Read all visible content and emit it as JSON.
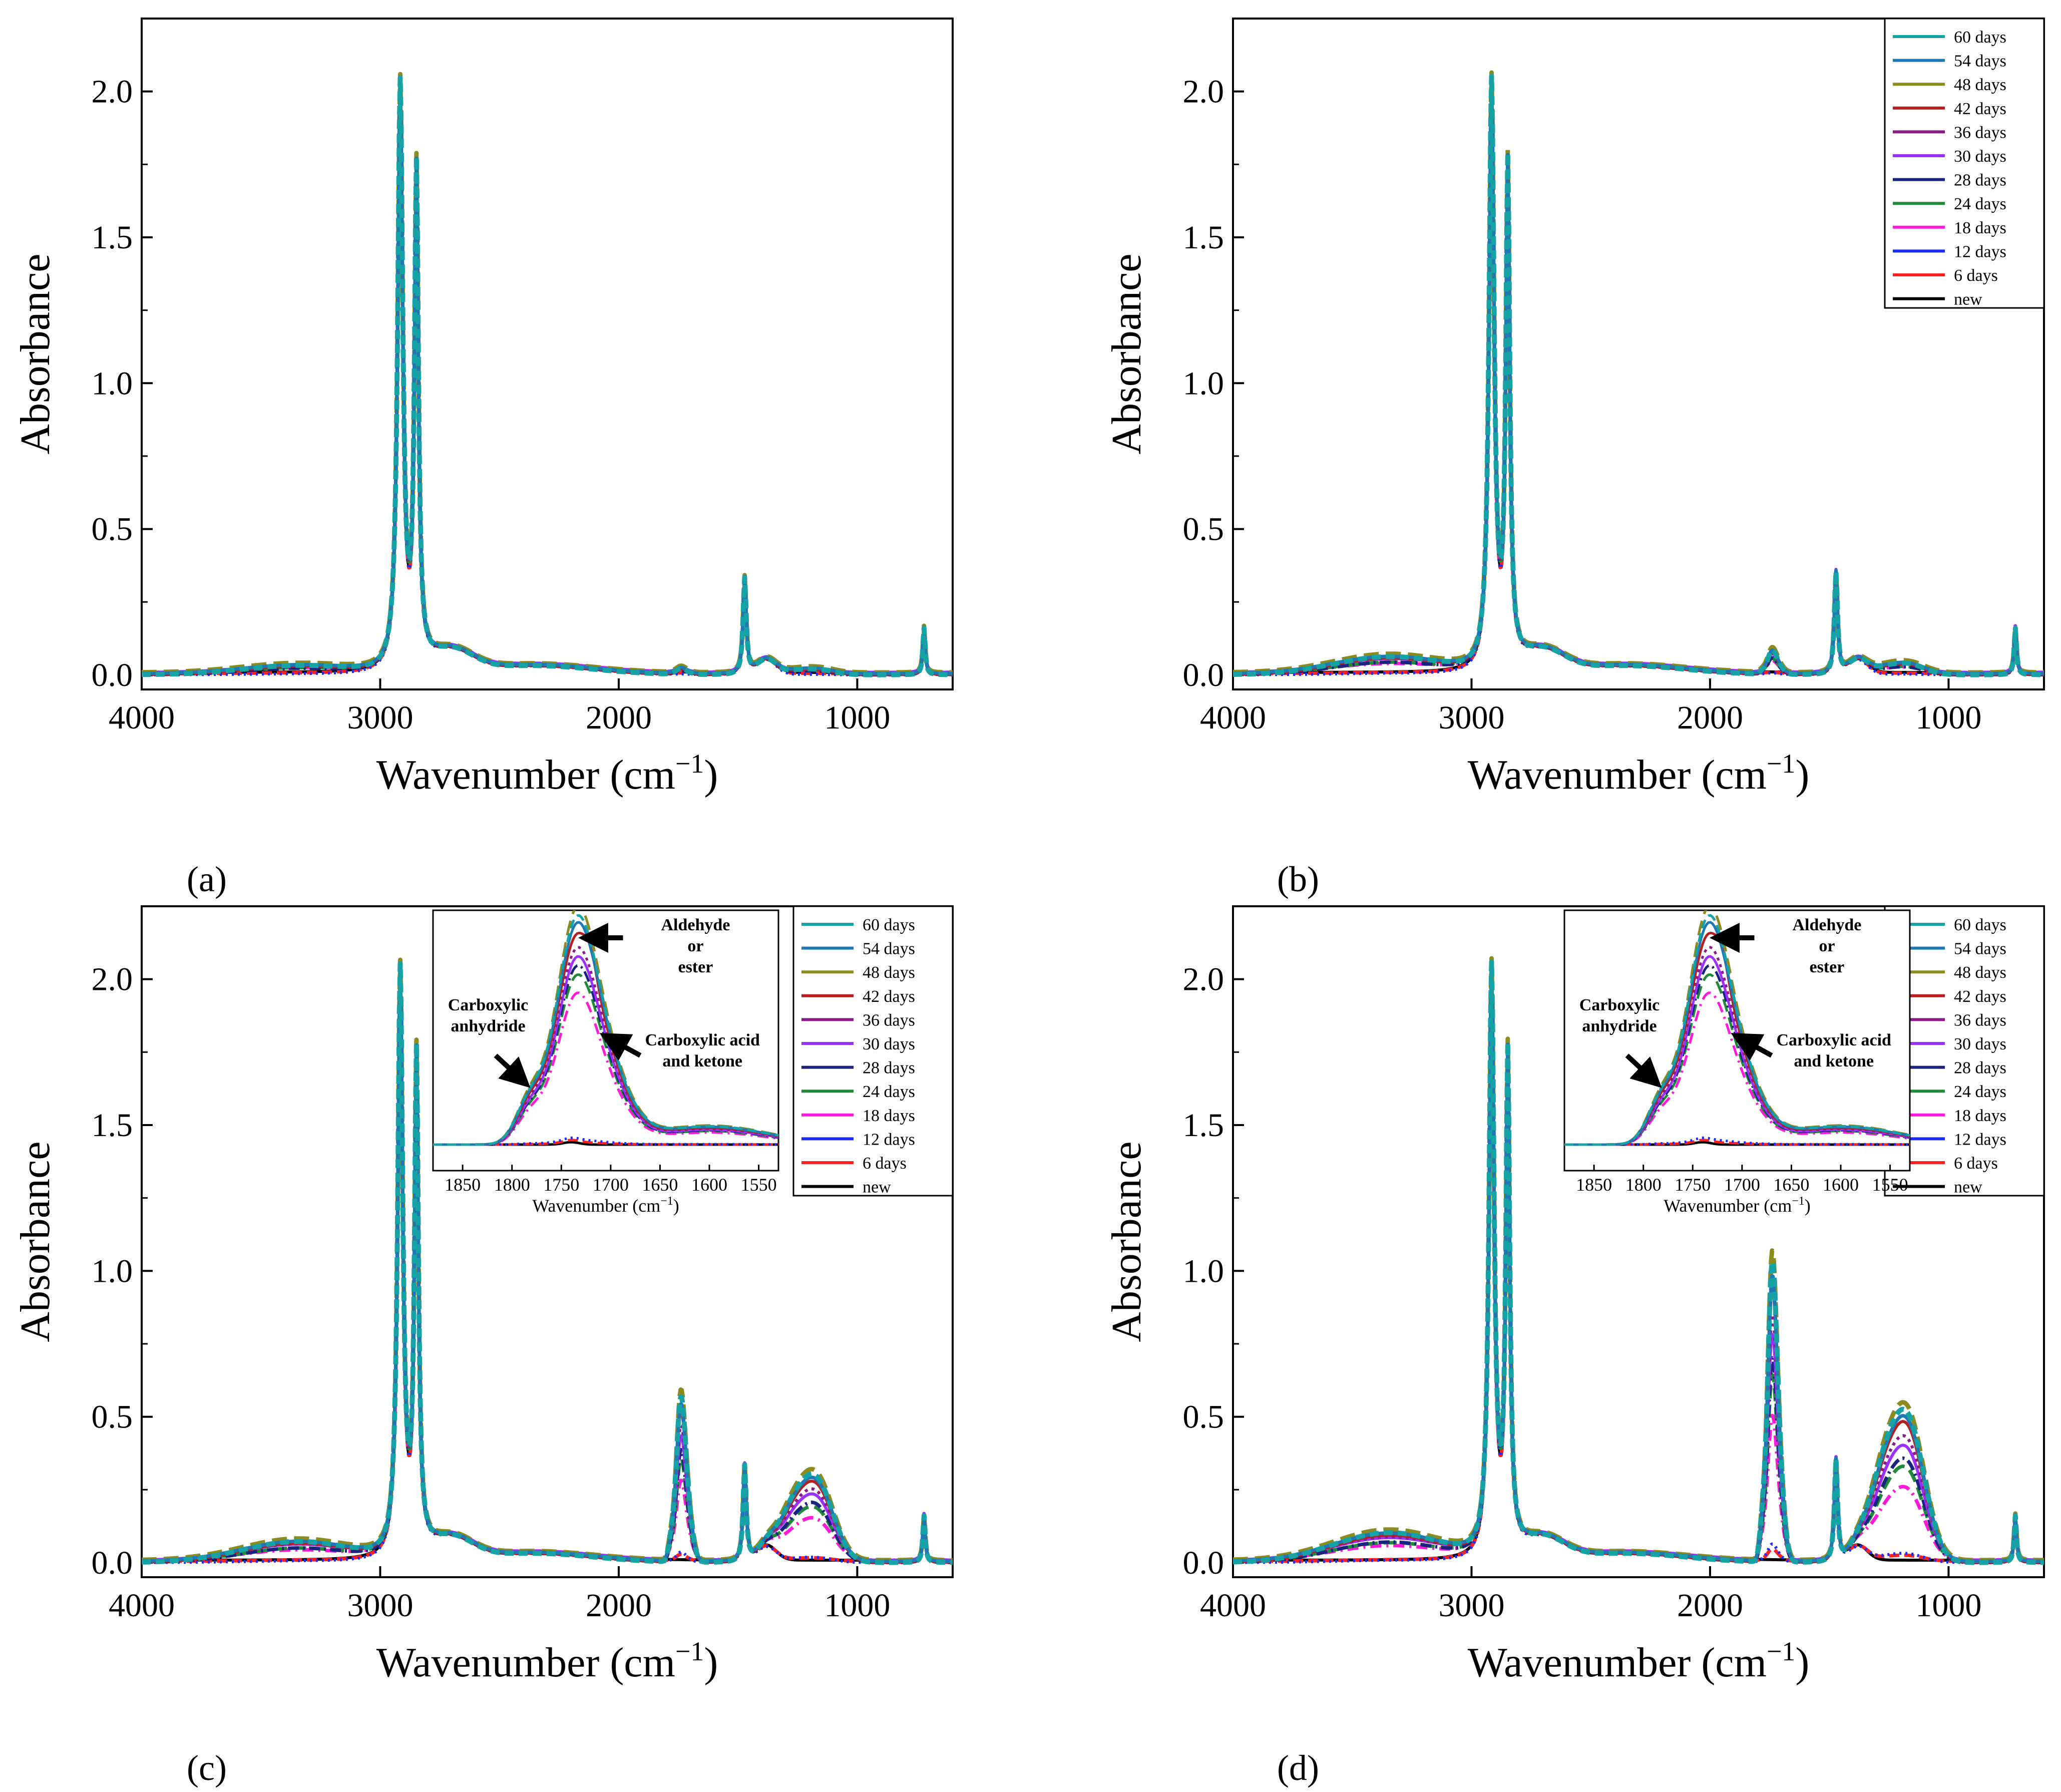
{
  "figure": {
    "x_label_main": "Wavenumber (cm",
    "x_label_sup": "−1",
    "x_label_close": ")",
    "y_label": "Absorbance",
    "legend_entries": [
      {
        "label": "60 days",
        "color": "#17a2a6"
      },
      {
        "label": "54 days",
        "color": "#1f77b4"
      },
      {
        "label": "48 days",
        "color": "#8b8b1f"
      },
      {
        "label": "42 days",
        "color": "#b51f1f"
      },
      {
        "label": "36 days",
        "color": "#8b1a8b"
      },
      {
        "label": "30 days",
        "color": "#9b30ff"
      },
      {
        "label": "28 days",
        "color": "#1a237e"
      },
      {
        "label": "24 days",
        "color": "#1f8b3a"
      },
      {
        "label": "18 days",
        "color": "#ff1ad9"
      },
      {
        "label": "12 days",
        "color": "#1a2bff"
      },
      {
        "label": "6 days",
        "color": "#ff2020"
      },
      {
        "label": "new",
        "color": "#000000"
      }
    ]
  },
  "chart_data": [
    {
      "id": "a",
      "panel_label": "(a)",
      "type": "line",
      "title": "",
      "xlabel": "Wavenumber (cm−1)",
      "ylabel": "Absorbance",
      "xlim": [
        4000,
        600
      ],
      "ylim": [
        -0.05,
        2.25
      ],
      "xticks": [
        4000,
        3000,
        2000,
        1000
      ],
      "yticks": [
        0.0,
        0.5,
        1.0,
        1.5,
        2.0
      ],
      "xtick_labels": [
        "4000",
        "3000",
        "2000",
        "1000"
      ],
      "ytick_labels": [
        "0.0",
        "0.5",
        "1.0",
        "1.5",
        "2.0"
      ],
      "legend": null,
      "peaks": [
        {
          "x": 2916,
          "y": 2.0
        },
        {
          "x": 2848,
          "y": 1.68
        },
        {
          "x": 1472,
          "y": 0.33
        },
        {
          "x": 720,
          "y": 0.16
        }
      ],
      "carbonyl_peak": 0.02,
      "co_peak": 0.02,
      "oh_band": 0.03
    },
    {
      "id": "b",
      "panel_label": "(b)",
      "type": "line",
      "title": "",
      "xlabel": "Wavenumber (cm−1)",
      "ylabel": "Absorbance",
      "xlim": [
        4000,
        600
      ],
      "ylim": [
        -0.05,
        2.25
      ],
      "xticks": [
        4000,
        3000,
        2000,
        1000
      ],
      "yticks": [
        0.0,
        0.5,
        1.0,
        1.5,
        2.0
      ],
      "xtick_labels": [
        "4000",
        "3000",
        "2000",
        "1000"
      ],
      "ytick_labels": [
        "0.0",
        "0.5",
        "1.0",
        "1.5",
        "2.0"
      ],
      "legend": "top-right",
      "peaks": [
        {
          "x": 2916,
          "y": 2.0
        },
        {
          "x": 2848,
          "y": 1.69
        },
        {
          "x": 1472,
          "y": 0.35
        },
        {
          "x": 720,
          "y": 0.16
        }
      ],
      "carbonyl_peak": 0.08,
      "co_peak": 0.04,
      "oh_band": 0.06
    },
    {
      "id": "c",
      "panel_label": "(c)",
      "type": "line",
      "title": "",
      "xlabel": "Wavenumber (cm−1)",
      "ylabel": "Absorbance",
      "xlim": [
        4000,
        600
      ],
      "ylim": [
        -0.05,
        2.25
      ],
      "xticks": [
        4000,
        3000,
        2000,
        1000
      ],
      "yticks": [
        0.0,
        0.5,
        1.0,
        1.5,
        2.0
      ],
      "xtick_labels": [
        "4000",
        "3000",
        "2000",
        "1000"
      ],
      "ytick_labels": [
        "0.0",
        "0.5",
        "1.0",
        "1.5",
        "2.0"
      ],
      "legend": "top-right",
      "peaks": [
        {
          "x": 2916,
          "y": 2.0
        },
        {
          "x": 2848,
          "y": 1.68
        },
        {
          "x": 1740,
          "y": 0.62
        },
        {
          "x": 1472,
          "y": 0.33
        },
        {
          "x": 1170,
          "y": 0.33
        },
        {
          "x": 720,
          "y": 0.16
        }
      ],
      "carbonyl_peak": 0.55,
      "co_peak": 0.3,
      "oh_band": 0.07,
      "inset": {
        "xlabel": "Wavenumber (cm−1)",
        "xlim": [
          1880,
          1530
        ],
        "xticks": [
          1850,
          1800,
          1750,
          1700,
          1650,
          1600,
          1550
        ],
        "xtick_labels": [
          "1850",
          "1800",
          "1750",
          "1700",
          "1650",
          "1600",
          "1550"
        ],
        "annotations": [
          {
            "lines": [
              "Aldehyde",
              "or",
              "ester"
            ]
          },
          {
            "lines": [
              "Carboxylic",
              "anhydride"
            ]
          },
          {
            "lines": [
              "Carboxylic acid",
              "and ketone"
            ]
          }
        ]
      }
    },
    {
      "id": "d",
      "panel_label": "(d)",
      "type": "line",
      "title": "",
      "xlabel": "Wavenumber (cm−1)",
      "ylabel": "Absorbance",
      "xlim": [
        4000,
        600
      ],
      "ylim": [
        -0.05,
        2.25
      ],
      "xticks": [
        4000,
        3000,
        2000,
        1000
      ],
      "yticks": [
        0.0,
        0.5,
        1.0,
        1.5,
        2.0
      ],
      "xtick_labels": [
        "4000",
        "3000",
        "2000",
        "1000"
      ],
      "ytick_labels": [
        "0.0",
        "0.5",
        "1.0",
        "1.5",
        "2.0"
      ],
      "legend": "top-right",
      "peaks": [
        {
          "x": 2916,
          "y": 2.0
        },
        {
          "x": 2848,
          "y": 1.68
        },
        {
          "x": 1740,
          "y": 1.01
        },
        {
          "x": 1472,
          "y": 0.35
        },
        {
          "x": 1170,
          "y": 0.56
        },
        {
          "x": 720,
          "y": 0.16
        }
      ],
      "carbonyl_peak": 1.0,
      "co_peak": 0.52,
      "oh_band": 0.1,
      "inset": {
        "xlabel": "Wavenumber (cm−1)",
        "xlim": [
          1880,
          1530
        ],
        "xticks": [
          1850,
          1800,
          1750,
          1700,
          1650,
          1600,
          1550
        ],
        "xtick_labels": [
          "1850",
          "1800",
          "1750",
          "1700",
          "1650",
          "1600",
          "1550"
        ],
        "annotations": [
          {
            "lines": [
              "Aldehyde",
              "or",
              "ester"
            ]
          },
          {
            "lines": [
              "Carboxylic",
              "anhydride"
            ]
          },
          {
            "lines": [
              "Carboxylic acid",
              "and ketone"
            ]
          }
        ]
      }
    }
  ]
}
